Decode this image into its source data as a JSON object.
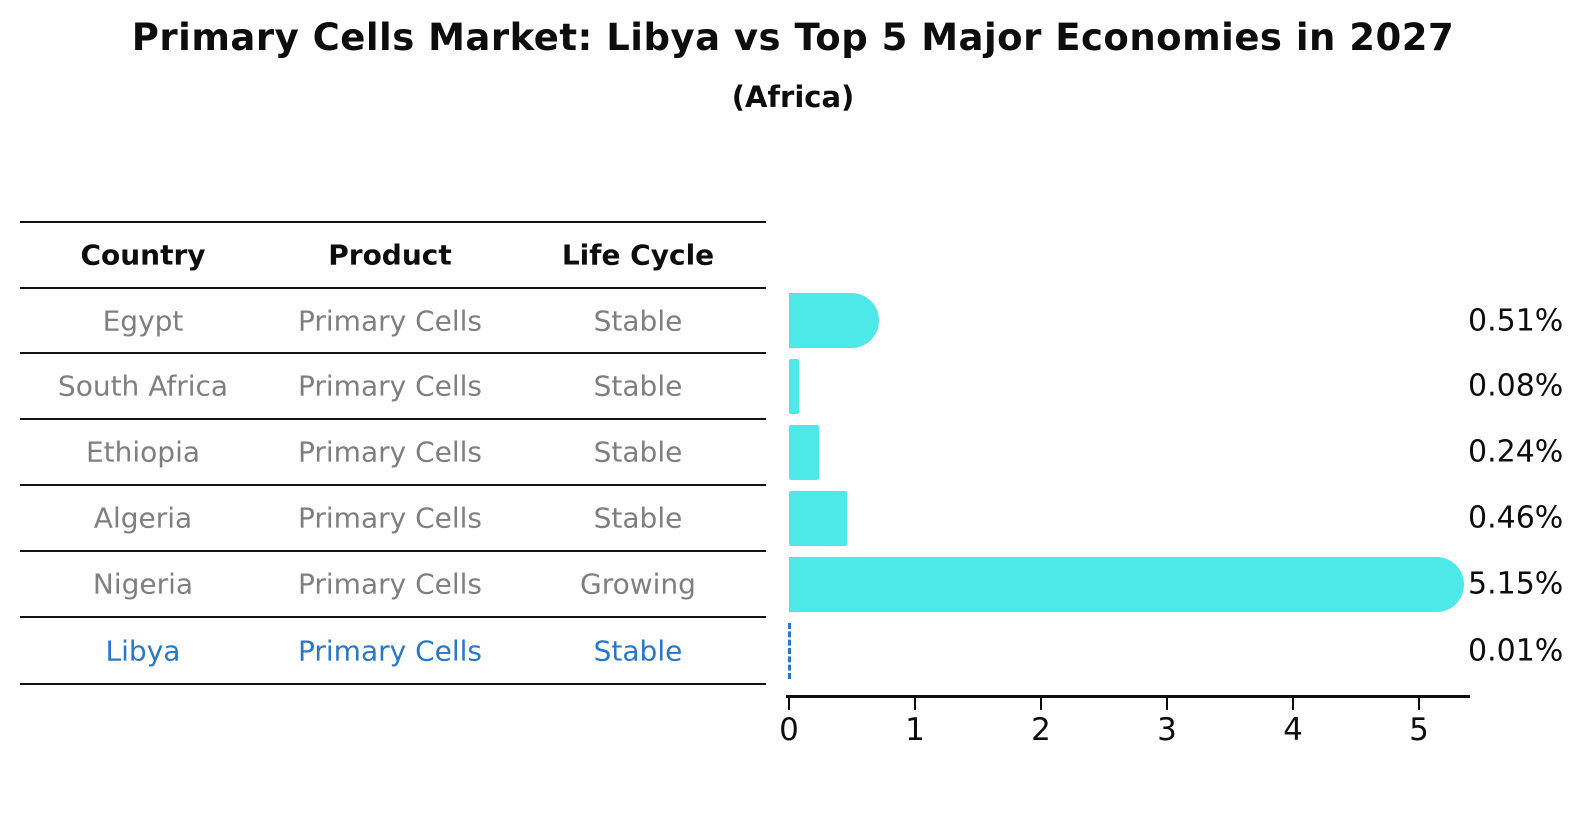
{
  "title": "Primary Cells Market: Libya vs Top 5 Major Economies in 2027",
  "subtitle": "(Africa)",
  "table": {
    "headers": [
      "Country",
      "Product",
      "Life Cycle"
    ],
    "rows": [
      {
        "country": "Egypt",
        "product": "Primary Cells",
        "life_cycle": "Stable",
        "highlighted": false
      },
      {
        "country": "South Africa",
        "product": "Primary Cells",
        "life_cycle": "Stable",
        "highlighted": false
      },
      {
        "country": "Ethiopia",
        "product": "Primary Cells",
        "life_cycle": "Stable",
        "highlighted": false
      },
      {
        "country": "Algeria",
        "product": "Primary Cells",
        "life_cycle": "Stable",
        "highlighted": false
      },
      {
        "country": "Nigeria",
        "product": "Primary Cells",
        "life_cycle": "Growing",
        "highlighted": false
      },
      {
        "country": "Libya",
        "product": "Primary Cells",
        "life_cycle": "Stable",
        "highlighted": true
      }
    ]
  },
  "chart_data": {
    "type": "bar",
    "orientation": "horizontal",
    "title": "Primary Cells Market: Libya vs Top 5 Major Economies in 2027",
    "subtitle": "(Africa)",
    "categories": [
      "Egypt",
      "South Africa",
      "Ethiopia",
      "Algeria",
      "Nigeria",
      "Libya"
    ],
    "values": [
      0.51,
      0.08,
      0.24,
      0.46,
      5.15,
      0.01
    ],
    "value_labels": [
      "0.51%",
      "0.08%",
      "0.24%",
      "0.46%",
      "5.15%",
      "0.01%"
    ],
    "x_ticks": [
      "0",
      "1",
      "2",
      "3",
      "4",
      "5"
    ],
    "xlim": [
      0,
      5.4
    ],
    "grid": false,
    "legend": false,
    "highlight_index": 5,
    "highlight_marker": "dashed-line",
    "bar_color": "#4DE8E8",
    "highlight_color": "#2878C8"
  },
  "colors": {
    "bar": "#4DE8E8",
    "highlight_blue": "#2878C8",
    "row_text": "#7F7F7F",
    "heading_text": "#0D0D0D",
    "background": "#FFFFFF"
  }
}
